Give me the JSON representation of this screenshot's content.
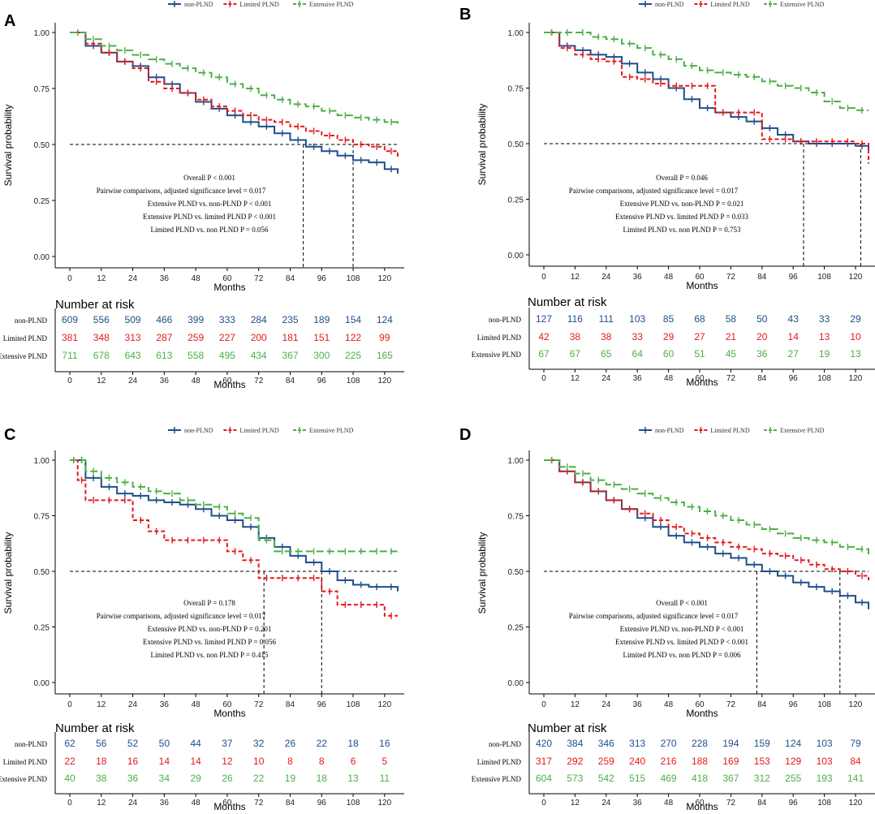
{
  "figure": {
    "x_axis_title": "Months",
    "y_axis_title": "Survival probability",
    "risk_table_title": "Number at risk",
    "x_ticks": [
      0,
      12,
      24,
      36,
      48,
      60,
      72,
      84,
      96,
      108,
      120
    ],
    "y_ticks": [
      "0.00",
      "0.25",
      "0.50",
      "0.75",
      "1.00"
    ],
    "colors": {
      "non-PLND": "#1F4E8C",
      "Limited PLND": "#E41A1C",
      "Extensive PLND": "#4DAF4A"
    }
  },
  "chart_data": [
    {
      "panel": "A",
      "type": "line",
      "title": "A",
      "xlabel": "Months",
      "ylabel": "Survival probability",
      "xlim": [
        0,
        125
      ],
      "ylim": [
        0,
        1
      ],
      "legend": [
        "non-PLND",
        "Limited PLND",
        "Extensive PLND"
      ],
      "median_line": 0.5,
      "medians": [
        89,
        108
      ],
      "series": [
        {
          "name": "non-PLND",
          "x": [
            0,
            6,
            12,
            18,
            24,
            30,
            36,
            42,
            48,
            54,
            60,
            66,
            72,
            78,
            84,
            90,
            96,
            102,
            108,
            114,
            120,
            125
          ],
          "y": [
            1.0,
            0.94,
            0.91,
            0.87,
            0.85,
            0.8,
            0.77,
            0.73,
            0.69,
            0.66,
            0.63,
            0.6,
            0.58,
            0.55,
            0.52,
            0.49,
            0.47,
            0.45,
            0.43,
            0.42,
            0.39,
            0.37
          ]
        },
        {
          "name": "Limited PLND",
          "x": [
            0,
            6,
            12,
            18,
            24,
            30,
            36,
            42,
            48,
            54,
            60,
            66,
            72,
            78,
            84,
            90,
            96,
            102,
            108,
            114,
            120,
            125
          ],
          "y": [
            1.0,
            0.95,
            0.91,
            0.87,
            0.84,
            0.78,
            0.75,
            0.73,
            0.7,
            0.67,
            0.65,
            0.63,
            0.61,
            0.6,
            0.58,
            0.56,
            0.54,
            0.52,
            0.5,
            0.49,
            0.47,
            0.44
          ]
        },
        {
          "name": "Extensive PLND",
          "x": [
            0,
            6,
            12,
            18,
            24,
            30,
            36,
            42,
            48,
            54,
            60,
            66,
            72,
            78,
            84,
            90,
            96,
            102,
            108,
            114,
            120,
            125
          ],
          "y": [
            1.0,
            0.97,
            0.94,
            0.92,
            0.9,
            0.88,
            0.86,
            0.84,
            0.82,
            0.8,
            0.77,
            0.75,
            0.72,
            0.7,
            0.68,
            0.67,
            0.65,
            0.63,
            0.62,
            0.61,
            0.6,
            0.58
          ]
        }
      ],
      "stats": [
        "Overall   P < 0.001",
        "Pairwise comparisons,  adjusted significance level = 0.017",
        "Extensive PLND vs. non-PLND    P < 0.001",
        "Extensive PLND vs. limited PLND   P < 0.001",
        "Limited PLND vs. non PLND    P = 0.056"
      ],
      "risk_table": [
        {
          "name": "non-PLND",
          "values": [
            609,
            556,
            509,
            466,
            399,
            333,
            284,
            235,
            189,
            154,
            124
          ]
        },
        {
          "name": "Limited PLND",
          "values": [
            381,
            348,
            313,
            287,
            259,
            227,
            200,
            181,
            151,
            122,
            99
          ]
        },
        {
          "name": "Extensive PLND",
          "values": [
            711,
            678,
            643,
            613,
            558,
            495,
            434,
            367,
            300,
            225,
            165
          ]
        }
      ]
    },
    {
      "panel": "B",
      "type": "line",
      "title": "B",
      "xlabel": "Months",
      "ylabel": "Survival probability",
      "xlim": [
        0,
        125
      ],
      "ylim": [
        0,
        1
      ],
      "legend": [
        "non-PLND",
        "Limited PLND",
        "Extensive PLND"
      ],
      "median_line": 0.5,
      "medians": [
        100,
        122
      ],
      "series": [
        {
          "name": "non-PLND",
          "x": [
            0,
            6,
            12,
            18,
            24,
            30,
            36,
            42,
            48,
            54,
            60,
            66,
            72,
            78,
            84,
            90,
            96,
            102,
            108,
            114,
            120,
            125
          ],
          "y": [
            1.0,
            0.94,
            0.92,
            0.9,
            0.89,
            0.86,
            0.82,
            0.79,
            0.75,
            0.7,
            0.66,
            0.64,
            0.62,
            0.6,
            0.57,
            0.54,
            0.51,
            0.5,
            0.5,
            0.5,
            0.49,
            0.46
          ]
        },
        {
          "name": "Limited PLND",
          "x": [
            0,
            6,
            12,
            18,
            24,
            30,
            36,
            42,
            48,
            54,
            60,
            66,
            72,
            78,
            84,
            90,
            96,
            102,
            108,
            114,
            120,
            125
          ],
          "y": [
            1.0,
            0.93,
            0.9,
            0.88,
            0.87,
            0.8,
            0.79,
            0.77,
            0.76,
            0.76,
            0.76,
            0.64,
            0.64,
            0.64,
            0.52,
            0.52,
            0.51,
            0.51,
            0.51,
            0.51,
            0.5,
            0.41
          ]
        },
        {
          "name": "Extensive PLND",
          "x": [
            0,
            6,
            12,
            18,
            24,
            30,
            36,
            42,
            48,
            54,
            60,
            66,
            72,
            78,
            84,
            90,
            96,
            102,
            108,
            114,
            120,
            125
          ],
          "y": [
            1.0,
            1.0,
            1.0,
            0.98,
            0.97,
            0.95,
            0.93,
            0.9,
            0.88,
            0.85,
            0.83,
            0.82,
            0.81,
            0.8,
            0.78,
            0.76,
            0.75,
            0.73,
            0.69,
            0.66,
            0.65,
            0.65
          ]
        }
      ],
      "stats": [
        "Overall   P = 0.046",
        "Pairwise comparisons,  adjusted significance level = 0.017",
        "Extensive PLND vs. non-PLND    P = 0.021",
        "Extensive PLND vs. limited PLND    P = 0.033",
        "Limited PLND vs. non PLND    P = 0.753"
      ],
      "risk_table": [
        {
          "name": "non-PLND",
          "values": [
            127,
            116,
            111,
            103,
            85,
            68,
            58,
            50,
            43,
            33,
            29
          ]
        },
        {
          "name": "Limited PLND",
          "values": [
            42,
            38,
            38,
            33,
            29,
            27,
            21,
            20,
            14,
            13,
            10
          ]
        },
        {
          "name": "Extensive PLND",
          "values": [
            67,
            67,
            65,
            64,
            60,
            51,
            45,
            36,
            27,
            19,
            13
          ]
        }
      ]
    },
    {
      "panel": "C",
      "type": "line",
      "title": "C",
      "xlabel": "Months",
      "ylabel": "Survival probability",
      "xlim": [
        0,
        125
      ],
      "ylim": [
        0,
        1
      ],
      "legend": [
        "non-PLND",
        "Limited PLND",
        "Extensive PLND"
      ],
      "median_line": 0.5,
      "medians": [
        74,
        96
      ],
      "series": [
        {
          "name": "non-PLND",
          "x": [
            0,
            3,
            6,
            12,
            18,
            24,
            30,
            36,
            42,
            48,
            54,
            60,
            66,
            72,
            78,
            84,
            90,
            96,
            102,
            108,
            114,
            120,
            125
          ],
          "y": [
            1.0,
            1.0,
            0.92,
            0.88,
            0.85,
            0.84,
            0.82,
            0.81,
            0.8,
            0.78,
            0.75,
            0.73,
            0.7,
            0.65,
            0.61,
            0.57,
            0.54,
            0.5,
            0.46,
            0.44,
            0.43,
            0.43,
            0.41
          ]
        },
        {
          "name": "Limited PLND",
          "x": [
            0,
            3,
            6,
            12,
            18,
            24,
            30,
            36,
            42,
            48,
            54,
            60,
            66,
            72,
            78,
            84,
            90,
            96,
            102,
            108,
            114,
            120,
            125
          ],
          "y": [
            1.0,
            0.91,
            0.82,
            0.82,
            0.82,
            0.73,
            0.68,
            0.64,
            0.64,
            0.64,
            0.64,
            0.59,
            0.55,
            0.47,
            0.47,
            0.47,
            0.47,
            0.41,
            0.35,
            0.35,
            0.35,
            0.3,
            0.3
          ]
        },
        {
          "name": "Extensive PLND",
          "x": [
            0,
            3,
            6,
            12,
            18,
            24,
            30,
            36,
            42,
            48,
            54,
            60,
            66,
            72,
            78,
            84,
            90,
            96,
            102,
            108,
            114,
            120,
            125
          ],
          "y": [
            1.0,
            1.0,
            0.95,
            0.92,
            0.9,
            0.88,
            0.86,
            0.85,
            0.82,
            0.8,
            0.79,
            0.76,
            0.74,
            0.64,
            0.59,
            0.59,
            0.59,
            0.59,
            0.59,
            0.59,
            0.59,
            0.59,
            0.59
          ]
        }
      ],
      "stats": [
        "Overall   P = 0.178",
        "Pairwise comparisons,  adjusted significance level = 0.017",
        "Extensive PLND vs. non-PLND    P = 0.201",
        "Extensive PLND vs. limited PLND    P = 0.056",
        "Limited PLND vs. non PLND    P = 0.415"
      ],
      "risk_table": [
        {
          "name": "non-PLND",
          "values": [
            62,
            56,
            52,
            50,
            44,
            37,
            32,
            26,
            22,
            18,
            16
          ]
        },
        {
          "name": "Limited PLND",
          "values": [
            22,
            18,
            16,
            14,
            14,
            12,
            10,
            8,
            8,
            6,
            5
          ]
        },
        {
          "name": "Extensive PLND",
          "values": [
            40,
            38,
            36,
            34,
            29,
            26,
            22,
            19,
            18,
            13,
            11
          ]
        }
      ]
    },
    {
      "panel": "D",
      "type": "line",
      "title": "D",
      "xlabel": "Months",
      "ylabel": "Survival probability",
      "xlim": [
        0,
        125
      ],
      "ylim": [
        0,
        1
      ],
      "legend": [
        "non-PLND",
        "Limited PLND",
        "Extensive PLND"
      ],
      "median_line": 0.5,
      "medians": [
        82,
        114
      ],
      "series": [
        {
          "name": "non-PLND",
          "x": [
            0,
            6,
            12,
            18,
            24,
            30,
            36,
            42,
            48,
            54,
            60,
            66,
            72,
            78,
            84,
            90,
            96,
            102,
            108,
            114,
            120,
            125
          ],
          "y": [
            1.0,
            0.95,
            0.9,
            0.86,
            0.82,
            0.78,
            0.74,
            0.7,
            0.66,
            0.63,
            0.61,
            0.58,
            0.56,
            0.53,
            0.5,
            0.48,
            0.45,
            0.43,
            0.41,
            0.39,
            0.36,
            0.33
          ]
        },
        {
          "name": "Limited PLND",
          "x": [
            0,
            6,
            12,
            18,
            24,
            30,
            36,
            42,
            48,
            54,
            60,
            66,
            72,
            78,
            84,
            90,
            96,
            102,
            108,
            114,
            120,
            125
          ],
          "y": [
            1.0,
            0.95,
            0.9,
            0.86,
            0.82,
            0.78,
            0.76,
            0.73,
            0.7,
            0.67,
            0.65,
            0.63,
            0.61,
            0.6,
            0.58,
            0.57,
            0.55,
            0.53,
            0.51,
            0.5,
            0.48,
            0.46
          ]
        },
        {
          "name": "Extensive PLND",
          "x": [
            0,
            6,
            12,
            18,
            24,
            30,
            36,
            42,
            48,
            54,
            60,
            66,
            72,
            78,
            84,
            90,
            96,
            102,
            108,
            114,
            120,
            125
          ],
          "y": [
            1.0,
            0.97,
            0.94,
            0.91,
            0.89,
            0.87,
            0.85,
            0.83,
            0.81,
            0.79,
            0.77,
            0.75,
            0.73,
            0.71,
            0.69,
            0.67,
            0.65,
            0.64,
            0.63,
            0.61,
            0.6,
            0.57
          ]
        }
      ],
      "stats": [
        "Overall   P < 0.001",
        "Pairwise comparisons,  adjusted significance level = 0.017",
        "Extensive PLND vs. non-PLND    P < 0.001",
        "Extensive PLND vs. limited PLND    P < 0.001",
        "Limited PLND vs. non PLND    P = 0.006"
      ],
      "risk_table": [
        {
          "name": "non-PLND",
          "values": [
            420,
            384,
            346,
            313,
            270,
            228,
            194,
            159,
            124,
            103,
            79
          ]
        },
        {
          "name": "Limited PLND",
          "values": [
            317,
            292,
            259,
            240,
            216,
            188,
            169,
            153,
            129,
            103,
            84
          ]
        },
        {
          "name": "Extensive PLND",
          "values": [
            604,
            573,
            542,
            515,
            469,
            418,
            367,
            312,
            255,
            193,
            141
          ]
        }
      ]
    }
  ]
}
